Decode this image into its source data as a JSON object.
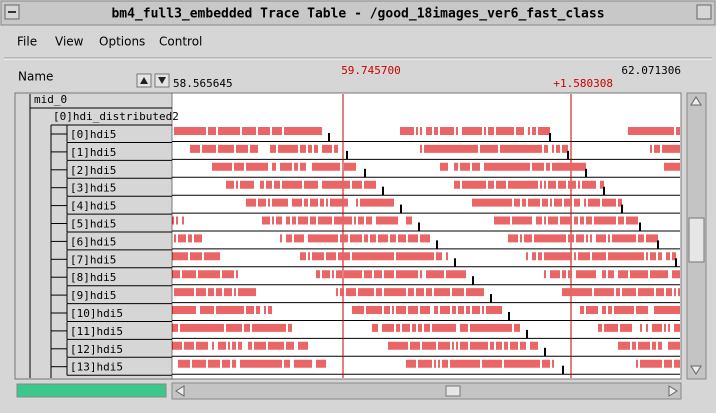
{
  "window": {
    "title": "bm4_full3_embedded Trace Table - /good_18images_ver6_fast_class"
  },
  "menu": [
    "File",
    "View",
    "Options",
    "Control"
  ],
  "header": {
    "name_label": "Name",
    "start_time": "58.565645",
    "cursor_time": "59.745700",
    "end_time": "62.071306",
    "cursor_delta": "+1.580308"
  },
  "tree": {
    "root": "mid_0",
    "group": "[0]hdi_distributed2",
    "items": [
      "[0]hdi5",
      "[1]hdi5",
      "[2]hdi5",
      "[3]hdi5",
      "[4]hdi5",
      "[5]hdi5",
      "[6]hdi5",
      "[7]hdi5",
      "[8]hdi5",
      "[9]hdi5",
      "[10]hdi5",
      "[11]hdi5",
      "[12]hdi5",
      "[13]hdi5"
    ]
  }
}
